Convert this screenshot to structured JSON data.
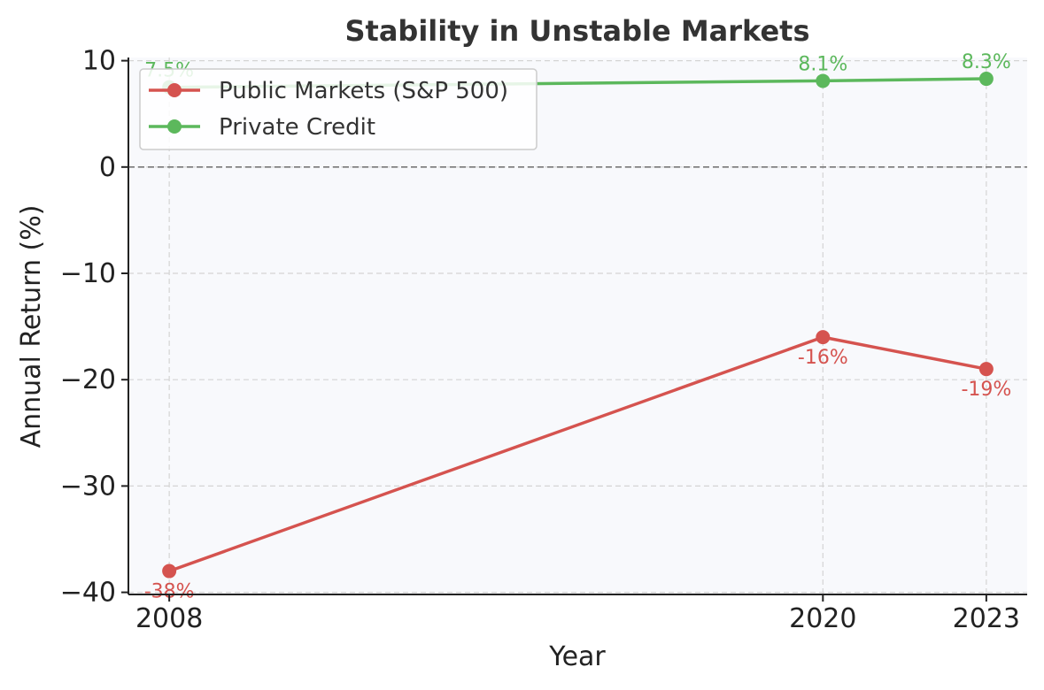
{
  "chart_data": {
    "type": "line",
    "title": "Stability in Unstable Markets",
    "xlabel": "Year",
    "ylabel": "Annual Return (%)",
    "x": [
      2008,
      2020,
      2023
    ],
    "x_tick_labels": [
      "2008",
      "2020",
      "2023"
    ],
    "xlim": [
      2007.25,
      2023.75
    ],
    "ylim": [
      -40.2,
      10.3
    ],
    "y_ticks": [
      -40,
      -30,
      -20,
      -10,
      0,
      10
    ],
    "y_tick_labels": [
      "−40",
      "−30",
      "−20",
      "−10",
      "0",
      "10"
    ],
    "grid": true,
    "zero_line": true,
    "legend_position": "top-left",
    "series": [
      {
        "name": "Public Markets (S&P 500)",
        "color": "#d5534f",
        "values": [
          -38,
          -16,
          -19
        ],
        "labels": [
          "-38%",
          "-16%",
          "-19%"
        ],
        "label_position": "below"
      },
      {
        "name": "Private Credit",
        "color": "#5cb85c",
        "values": [
          7.5,
          8.1,
          8.3
        ],
        "labels": [
          "7.5%",
          "8.1%",
          "8.3%"
        ],
        "label_position": "above"
      }
    ]
  }
}
